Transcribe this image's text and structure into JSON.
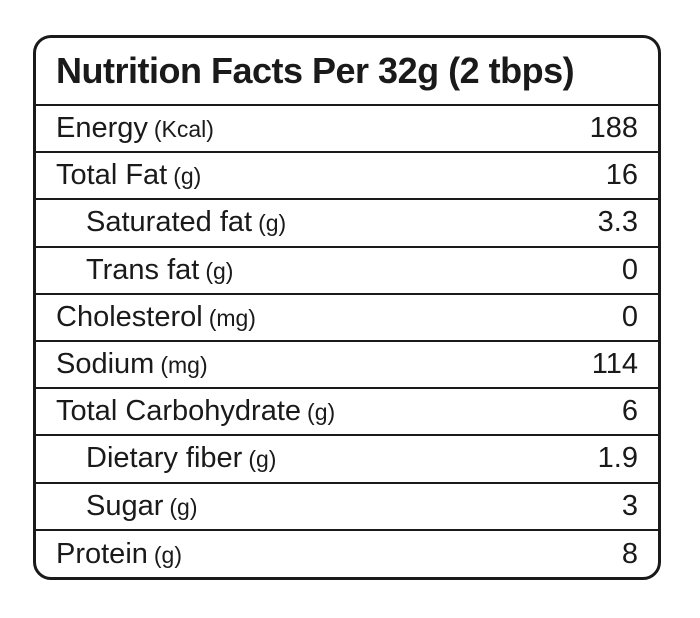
{
  "title": "Nutrition Facts Per 32g (2 tbps)",
  "rows": [
    {
      "label": "Energy",
      "unit": "(Kcal)",
      "value": "188",
      "sub": false
    },
    {
      "label": "Total Fat",
      "unit": "(g)",
      "value": "16",
      "sub": false
    },
    {
      "label": "Saturated fat",
      "unit": "(g)",
      "value": "3.3",
      "sub": true
    },
    {
      "label": "Trans fat",
      "unit": "(g)",
      "value": "0",
      "sub": true
    },
    {
      "label": "Cholesterol",
      "unit": "(mg)",
      "value": "0",
      "sub": false
    },
    {
      "label": "Sodium",
      "unit": "(mg)",
      "value": "114",
      "sub": false
    },
    {
      "label": "Total Carbohydrate",
      "unit": "(g)",
      "value": "6",
      "sub": false
    },
    {
      "label": "Dietary fiber",
      "unit": "(g)",
      "value": "1.9",
      "sub": true
    },
    {
      "label": "Sugar",
      "unit": "(g)",
      "value": "3",
      "sub": true
    },
    {
      "label": "Protein",
      "unit": "(g)",
      "value": "8",
      "sub": false
    }
  ]
}
